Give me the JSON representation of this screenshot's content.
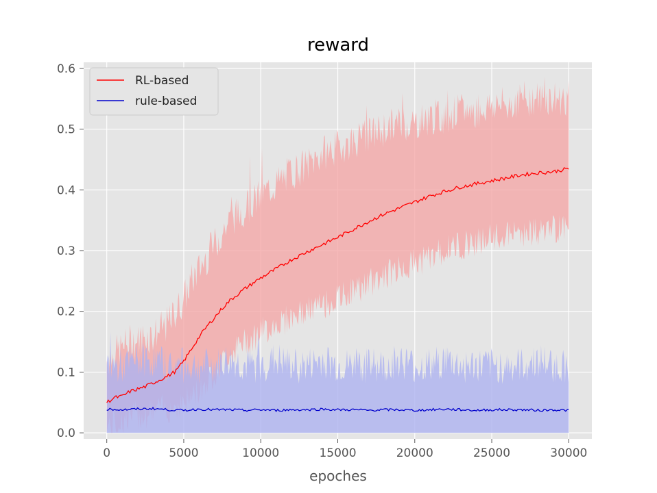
{
  "chart_data": {
    "type": "line",
    "title": "reward",
    "xlabel": "epoches",
    "ylabel": "",
    "xlim": [
      -1500,
      31500
    ],
    "ylim": [
      -0.01,
      0.61
    ],
    "xticks": [
      0,
      5000,
      10000,
      15000,
      20000,
      25000,
      30000
    ],
    "xtick_labels": [
      "0",
      "5000",
      "10000",
      "15000",
      "20000",
      "25000",
      "30000"
    ],
    "yticks": [
      0.0,
      0.1,
      0.2,
      0.3,
      0.4,
      0.5,
      0.6
    ],
    "ytick_labels": [
      "0.0",
      "0.1",
      "0.2",
      "0.3",
      "0.4",
      "0.5",
      "0.6"
    ],
    "grid": true,
    "legend_position": "upper-left",
    "series": [
      {
        "name": "RL-based",
        "color": "#ff0000",
        "band_color": "#f4a3a3",
        "x": [
          0,
          500,
          1000,
          1500,
          2000,
          2500,
          3000,
          3500,
          4000,
          4500,
          5000,
          5500,
          6000,
          6500,
          7000,
          7500,
          8000,
          9000,
          10000,
          11000,
          12000,
          13000,
          14000,
          15000,
          16000,
          17000,
          18000,
          19000,
          20000,
          21000,
          22000,
          23000,
          24000,
          25000,
          26000,
          27000,
          28000,
          29000,
          30000
        ],
        "y": [
          0.05,
          0.058,
          0.06,
          0.068,
          0.072,
          0.076,
          0.082,
          0.088,
          0.094,
          0.102,
          0.118,
          0.138,
          0.158,
          0.175,
          0.19,
          0.205,
          0.218,
          0.238,
          0.255,
          0.27,
          0.285,
          0.298,
          0.31,
          0.322,
          0.335,
          0.348,
          0.36,
          0.37,
          0.38,
          0.39,
          0.398,
          0.405,
          0.41,
          0.415,
          0.42,
          0.425,
          0.428,
          0.43,
          0.435
        ],
        "band_lower": [
          0.01,
          0.015,
          0.02,
          0.025,
          0.03,
          0.03,
          0.035,
          0.04,
          0.04,
          0.045,
          0.05,
          0.06,
          0.07,
          0.085,
          0.1,
          0.115,
          0.13,
          0.15,
          0.165,
          0.18,
          0.19,
          0.2,
          0.21,
          0.22,
          0.235,
          0.245,
          0.26,
          0.27,
          0.28,
          0.29,
          0.3,
          0.31,
          0.315,
          0.32,
          0.325,
          0.33,
          0.33,
          0.335,
          0.34
        ],
        "band_upper": [
          0.12,
          0.13,
          0.14,
          0.15,
          0.15,
          0.16,
          0.16,
          0.17,
          0.18,
          0.2,
          0.22,
          0.25,
          0.27,
          0.29,
          0.31,
          0.33,
          0.35,
          0.37,
          0.39,
          0.41,
          0.43,
          0.44,
          0.46,
          0.47,
          0.48,
          0.49,
          0.5,
          0.51,
          0.51,
          0.52,
          0.52,
          0.53,
          0.53,
          0.54,
          0.54,
          0.55,
          0.55,
          0.55,
          0.55
        ]
      },
      {
        "name": "rule-based",
        "color": "#0000cc",
        "band_color": "#aeb3f0",
        "x": [
          0,
          1000,
          2000,
          3000,
          4000,
          5000,
          6000,
          7000,
          8000,
          9000,
          10000,
          11000,
          12000,
          13000,
          14000,
          15000,
          16000,
          17000,
          18000,
          19000,
          20000,
          21000,
          22000,
          23000,
          24000,
          25000,
          26000,
          27000,
          28000,
          29000,
          30000
        ],
        "y": [
          0.039,
          0.038,
          0.039,
          0.04,
          0.038,
          0.037,
          0.039,
          0.038,
          0.038,
          0.037,
          0.038,
          0.037,
          0.038,
          0.038,
          0.039,
          0.038,
          0.038,
          0.037,
          0.038,
          0.038,
          0.037,
          0.038,
          0.039,
          0.038,
          0.037,
          0.038,
          0.038,
          0.038,
          0.037,
          0.038,
          0.037
        ],
        "band_lower": [
          0.0,
          0.0,
          0.0,
          0.0,
          0.0,
          0.0,
          0.0,
          0.0,
          0.0,
          0.0,
          0.0,
          0.0,
          0.0,
          0.0,
          0.0,
          0.0,
          0.0,
          0.0,
          0.0,
          0.0,
          0.0,
          0.0,
          0.0,
          0.0,
          0.0,
          0.0,
          0.0,
          0.0,
          0.0,
          0.0,
          0.0
        ],
        "band_upper": [
          0.11,
          0.11,
          0.12,
          0.12,
          0.11,
          0.11,
          0.11,
          0.11,
          0.12,
          0.11,
          0.11,
          0.12,
          0.11,
          0.11,
          0.12,
          0.11,
          0.11,
          0.11,
          0.11,
          0.12,
          0.11,
          0.11,
          0.12,
          0.11,
          0.11,
          0.11,
          0.11,
          0.11,
          0.12,
          0.11,
          0.11
        ]
      }
    ]
  }
}
